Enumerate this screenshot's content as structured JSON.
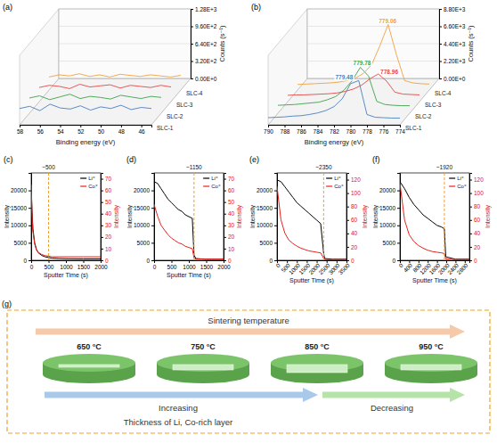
{
  "chart_data": [
    {
      "type": "line3d",
      "panel": "(a)",
      "xlabel": "Binding energy (eV)",
      "ylabel": "Counts (s⁻¹)",
      "grid": true,
      "x": [
        58,
        57,
        56,
        55,
        54,
        53,
        52,
        51,
        50,
        49,
        48,
        47,
        46,
        45
      ],
      "xlim": [
        58,
        45
      ],
      "xticks": [
        58,
        56,
        54,
        52,
        50,
        48,
        46
      ],
      "ylim": [
        0,
        1280
      ],
      "yticks": [
        {
          "value": 0,
          "label": "0.00E+0"
        },
        {
          "value": 320,
          "label": "3.20E+2"
        },
        {
          "value": 640,
          "label": "6.40E+2"
        },
        {
          "value": 960,
          "label": "9.60E+2"
        },
        {
          "value": 1280,
          "label": "1.28E+3"
        }
      ],
      "series": [
        {
          "name": "SLC-1",
          "color": "#4a7fc1",
          "values": [
            300,
            340,
            260,
            380,
            310,
            290,
            350,
            270,
            330,
            300,
            360,
            280,
            320,
            300
          ]
        },
        {
          "name": "SLC-2",
          "color": "#3ca34a",
          "values": [
            280,
            320,
            250,
            300,
            350,
            270,
            310,
            290,
            260,
            330,
            300,
            270,
            310,
            290
          ]
        },
        {
          "name": "SLC-3",
          "color": "#e04848",
          "values": [
            260,
            300,
            280,
            240,
            320,
            270,
            290,
            310,
            250,
            300,
            280,
            260,
            300,
            270
          ]
        },
        {
          "name": "SLC-4",
          "color": "#f0a040",
          "values": [
            240,
            280,
            260,
            300,
            250,
            280,
            240,
            290,
            270,
            250,
            280,
            260,
            240,
            270
          ]
        }
      ]
    },
    {
      "type": "line3d",
      "panel": "(b)",
      "xlabel": "Binding energy (eV)",
      "ylabel": "Counts (s⁻¹)",
      "grid": true,
      "x": [
        790,
        789,
        788,
        787,
        786,
        785,
        784,
        783,
        782,
        781,
        780,
        779,
        778,
        777,
        776,
        775,
        774
      ],
      "xlim": [
        790,
        774
      ],
      "xticks": [
        790,
        788,
        786,
        784,
        782,
        780,
        778,
        776,
        774
      ],
      "ylim": [
        0,
        8800
      ],
      "yticks": [
        {
          "value": 0,
          "label": "0.00E+0"
        },
        {
          "value": 2200,
          "label": "2.20E+3"
        },
        {
          "value": 4400,
          "label": "4.40E+3"
        },
        {
          "value": 6600,
          "label": "6.60E+3"
        },
        {
          "value": 8800,
          "label": "8.80E+3"
        }
      ],
      "series": [
        {
          "name": "SLC-1",
          "color": "#4a7fc1",
          "values": [
            900,
            950,
            1000,
            1100,
            1150,
            1300,
            1500,
            1800,
            2300,
            3300,
            5200,
            5600,
            1300,
            950,
            900,
            850,
            850
          ]
        },
        {
          "name": "SLC-2",
          "color": "#3ca34a",
          "values": [
            1000,
            1050,
            1100,
            1200,
            1300,
            1400,
            1700,
            2100,
            2900,
            4100,
            5800,
            4700,
            1500,
            1100,
            1000,
            950,
            950
          ]
        },
        {
          "name": "SLC-3",
          "color": "#e04848",
          "values": [
            800,
            850,
            850,
            900,
            950,
            1000,
            1100,
            1300,
            1600,
            2100,
            2900,
            3500,
            2600,
            1200,
            950,
            900,
            850
          ]
        },
        {
          "name": "SLC-4",
          "color": "#f0a040",
          "values": [
            700,
            750,
            800,
            850,
            900,
            1000,
            1200,
            1500,
            2100,
            3200,
            5600,
            8300,
            4500,
            1200,
            900,
            800,
            750
          ]
        }
      ],
      "annotations": [
        {
          "text": "779.48",
          "x": 779.48,
          "y": 5700,
          "series": 0
        },
        {
          "text": "779.78",
          "x": 779.78,
          "y": 6100,
          "series": 1
        },
        {
          "text": "778.96",
          "x": 778.96,
          "y": 3500,
          "series": 2
        },
        {
          "text": "779.06",
          "x": 779.06,
          "y": 8500,
          "series": 3
        }
      ]
    },
    {
      "type": "line",
      "panel": "(c)",
      "xlabel": "Sputter Time (s)",
      "ylabel": "Intensity",
      "y2label": "Intensity",
      "legend": "top-right",
      "x": [
        0,
        25,
        50,
        100,
        150,
        200,
        300,
        400,
        500,
        600,
        800,
        1000,
        1500,
        2000
      ],
      "xlim": [
        0,
        2000
      ],
      "xticks": [
        0,
        500,
        1000,
        1500,
        2000
      ],
      "ylim": [
        0,
        25000
      ],
      "yticks": [
        0,
        5000,
        10000,
        15000,
        20000
      ],
      "y2lim": [
        0,
        75
      ],
      "y2ticks": [
        0,
        10,
        20,
        30,
        40,
        50,
        60,
        70
      ],
      "series": [
        {
          "name": "Li⁺",
          "color": "#000000",
          "values": [
            22000,
            14000,
            9000,
            5000,
            3200,
            2200,
            1400,
            1000,
            800,
            600,
            500,
            450,
            400,
            400
          ]
        },
        {
          "name": "Co⁺",
          "color": "#e8221b",
          "axis": "y2",
          "values": [
            65,
            40,
            25,
            14,
            9,
            7,
            5,
            4,
            3.5,
            3,
            3,
            3,
            3,
            3
          ]
        }
      ],
      "annotations": [
        {
          "text": "~500",
          "x": 500
        }
      ]
    },
    {
      "type": "line",
      "panel": "(d)",
      "xlabel": "Sputter Time (s)",
      "ylabel": "Intensity",
      "y2label": "Intensity",
      "legend": "top-right",
      "x": [
        0,
        100,
        200,
        300,
        400,
        500,
        600,
        700,
        800,
        900,
        1000,
        1100,
        1150,
        1200,
        1500,
        2000
      ],
      "xlim": [
        0,
        2000
      ],
      "xticks": [
        0,
        500,
        1000,
        1500,
        2000
      ],
      "ylim": [
        0,
        25000
      ],
      "yticks": [
        0,
        5000,
        10000,
        15000,
        20000
      ],
      "y2lim": [
        0,
        75
      ],
      "y2ticks": [
        0,
        10,
        20,
        30,
        40,
        50,
        60,
        70
      ],
      "series": [
        {
          "name": "Li⁺",
          "color": "#000000",
          "values": [
            22500,
            22000,
            20500,
            19000,
            17500,
            16500,
            15500,
            14500,
            14000,
            13000,
            12500,
            12000,
            1500,
            500,
            300,
            300
          ]
        },
        {
          "name": "Co⁺",
          "color": "#e8221b",
          "axis": "y2",
          "values": [
            48,
            38,
            30,
            26,
            22,
            19,
            17,
            15,
            14,
            12,
            11,
            10,
            2,
            1,
            1,
            1
          ]
        }
      ],
      "annotations": [
        {
          "text": "~1150",
          "x": 1150
        }
      ]
    },
    {
      "type": "line",
      "panel": "(e)",
      "xlabel": "Sputter Time (s)",
      "ylabel": "Intensity",
      "y2label": "Intensity",
      "legend": "top-right",
      "x": [
        0,
        200,
        400,
        600,
        800,
        1000,
        1200,
        1400,
        1600,
        1800,
        2000,
        2200,
        2350,
        2400,
        2800,
        3500
      ],
      "xlim": [
        0,
        3500
      ],
      "xticks": [
        0,
        500,
        1000,
        1500,
        2000,
        2500,
        3000,
        3500
      ],
      "ylim": [
        0,
        25000
      ],
      "yticks": [
        0,
        5000,
        10000,
        15000,
        20000
      ],
      "y2lim": [
        0,
        130
      ],
      "y2ticks": [
        0,
        20,
        40,
        60,
        80,
        100,
        120
      ],
      "series": [
        {
          "name": "Li⁺",
          "color": "#000000",
          "values": [
            23000,
            22500,
            21000,
            19500,
            18000,
            16500,
            15500,
            14500,
            13500,
            12500,
            11500,
            10500,
            2000,
            500,
            300,
            300
          ]
        },
        {
          "name": "Co⁺",
          "color": "#e8221b",
          "axis": "y2",
          "values": [
            110,
            60,
            40,
            30,
            25,
            21,
            18,
            16,
            14,
            13,
            12,
            11,
            3,
            1,
            1,
            1
          ]
        }
      ],
      "annotations": [
        {
          "text": "~2350",
          "x": 2350
        }
      ]
    },
    {
      "type": "line",
      "panel": "(f)",
      "xlabel": "Sputter Time (s)",
      "ylabel": "Intensity",
      "y2label": "Intensity",
      "legend": "top-right",
      "x": [
        0,
        200,
        400,
        600,
        800,
        1000,
        1200,
        1400,
        1600,
        1800,
        1920,
        1980,
        2400,
        3000
      ],
      "xlim": [
        0,
        3000
      ],
      "xticks": [
        0,
        400,
        800,
        1200,
        1600,
        2000,
        2400,
        2800
      ],
      "ylim": [
        0,
        25000
      ],
      "yticks": [
        0,
        5000,
        10000,
        15000,
        20000
      ],
      "y2lim": [
        0,
        130
      ],
      "y2ticks": [
        0,
        20,
        40,
        60,
        80,
        100,
        120
      ],
      "series": [
        {
          "name": "Li⁺",
          "color": "#000000",
          "values": [
            22500,
            20500,
            18000,
            16000,
            14500,
            13000,
            12000,
            11000,
            10000,
            9500,
            9000,
            1000,
            300,
            300
          ]
        },
        {
          "name": "Co⁺",
          "color": "#e8221b",
          "axis": "y2",
          "values": [
            115,
            60,
            38,
            28,
            22,
            18,
            15,
            13,
            12,
            11,
            10,
            2,
            1,
            1
          ]
        }
      ],
      "annotations": [
        {
          "text": "~1920",
          "x": 1920
        }
      ]
    }
  ],
  "diagram": {
    "panel": "(g)",
    "top_arrow": "Sintering temperature",
    "temperatures": [
      "650 °C",
      "750 °C",
      "850 °C",
      "950 °C"
    ],
    "trend_left": "Increasing",
    "trend_right": "Decreasing",
    "caption": "Thickness of Li, Co-rich layer"
  }
}
